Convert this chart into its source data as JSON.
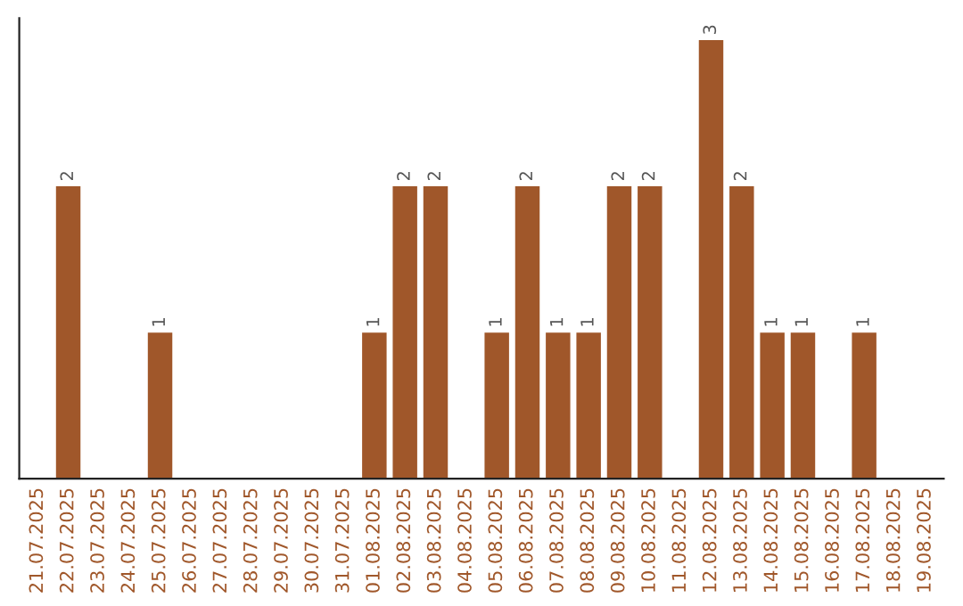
{
  "chart_data": {
    "type": "bar",
    "categories": [
      "21.07.2025",
      "22.07.2025",
      "23.07.2025",
      "24.07.2025",
      "25.07.2025",
      "26.07.2025",
      "27.07.2025",
      "28.07.2025",
      "29.07.2025",
      "30.07.2025",
      "31.07.2025",
      "01.08.2025",
      "02.08.2025",
      "03.08.2025",
      "04.08.2025",
      "05.08.2025",
      "06.08.2025",
      "07.08.2025",
      "08.08.2025",
      "09.08.2025",
      "10.08.2025",
      "11.08.2025",
      "12.08.2025",
      "13.08.2025",
      "14.08.2025",
      "15.08.2025",
      "16.08.2025",
      "17.08.2025",
      "18.08.2025",
      "19.08.2025"
    ],
    "values": [
      0,
      2,
      0,
      0,
      1,
      0,
      0,
      0,
      0,
      0,
      0,
      1,
      2,
      2,
      0,
      1,
      2,
      1,
      1,
      2,
      2,
      0,
      3,
      2,
      1,
      1,
      0,
      1,
      0,
      0
    ],
    "value_labels": [
      null,
      "2",
      null,
      null,
      "1",
      null,
      null,
      null,
      null,
      null,
      null,
      "1",
      "2",
      "2",
      null,
      "1",
      "2",
      "1",
      "1",
      "2",
      "2",
      null,
      "3",
      "2",
      "1",
      "1",
      null,
      "1",
      null,
      null
    ],
    "color": "#a0572a",
    "tick_labels": "x",
    "grid": false,
    "legend": false
  }
}
